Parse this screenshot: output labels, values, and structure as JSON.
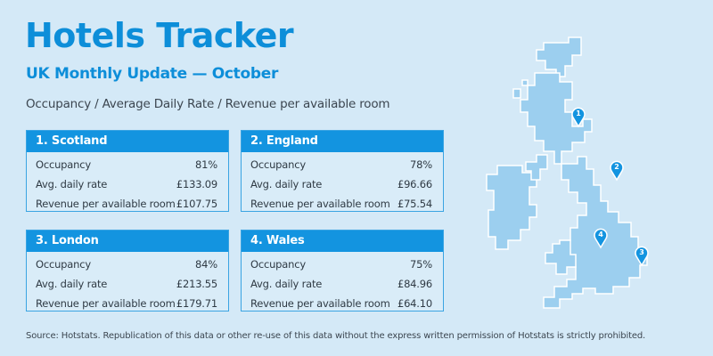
{
  "header": {
    "title": "Hotels Tracker",
    "subtitle": "UK Monthly Update — October",
    "caption": "Occupancy / Average Daily Rate / Revenue per available room"
  },
  "cards": [
    {
      "title": "1. Scotland",
      "rows": [
        {
          "label": "Occupancy",
          "value": "81%"
        },
        {
          "label": "Avg. daily rate",
          "value": "£133.09"
        },
        {
          "label": "Revenue per available room",
          "value": "£107.75"
        }
      ]
    },
    {
      "title": "2. England",
      "rows": [
        {
          "label": "Occupancy",
          "value": "78%"
        },
        {
          "label": "Avg. daily rate",
          "value": "£96.66"
        },
        {
          "label": "Revenue per available room",
          "value": "£75.54"
        }
      ]
    },
    {
      "title": "3. London",
      "rows": [
        {
          "label": "Occupancy",
          "value": "84%"
        },
        {
          "label": "Avg. daily rate",
          "value": "£213.55"
        },
        {
          "label": "Revenue per available room",
          "value": "£179.71"
        }
      ]
    },
    {
      "title": "4. Wales",
      "rows": [
        {
          "label": "Occupancy",
          "value": "75%"
        },
        {
          "label": "Avg. daily rate",
          "value": "£84.96"
        },
        {
          "label": "Revenue per available room",
          "value": "£64.10"
        }
      ]
    }
  ],
  "map": {
    "markers": [
      {
        "label": "1"
      },
      {
        "label": "2"
      },
      {
        "label": "3"
      },
      {
        "label": "4"
      }
    ]
  },
  "footer": {
    "source": "Source: Hotstats. Republication of this data or other re-use of this data without the express written permission of Hotstats is strictly prohibited."
  },
  "colors": {
    "background": "#d4e9f7",
    "accent": "#0d8ed9",
    "card_header": "#1394e0",
    "map_fill": "#9ccfef",
    "map_stroke": "#ffffff"
  }
}
